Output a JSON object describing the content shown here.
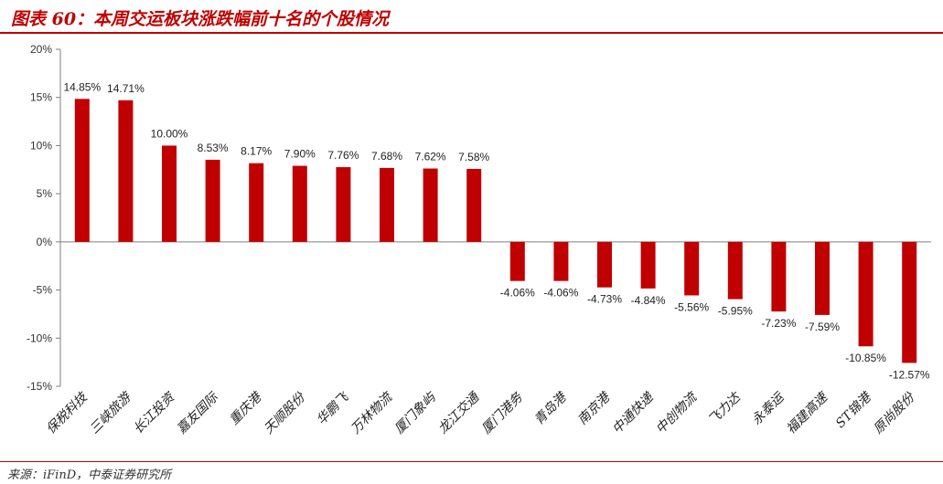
{
  "title": "图表 60：本周交运板块涨跌幅前十名的个股情况",
  "source": "来源：iFinD，中泰证券研究所",
  "colors": {
    "accent": "#c00000",
    "bar": "#c00000"
  },
  "chart_data": {
    "type": "bar",
    "title": "",
    "xlabel": "",
    "ylabel": "",
    "ylim": [
      -15,
      20
    ],
    "yticks": [
      20,
      15,
      10,
      5,
      0,
      -5,
      -10,
      -15
    ],
    "ytick_labels": [
      "20%",
      "15%",
      "10%",
      "5%",
      "0%",
      "-5%",
      "-10%",
      "-15%"
    ],
    "grid": false,
    "categories": [
      "保税科技",
      "三峡旅游",
      "长江投资",
      "嘉友国际",
      "重庆港",
      "天顺股份",
      "华鹏飞",
      "万林物流",
      "厦门象屿",
      "龙江交通",
      "厦门港务",
      "青岛港",
      "南京港",
      "中通快递",
      "中创物流",
      "飞力达",
      "永泰运",
      "福建高速",
      "ST锦港",
      "原尚股份"
    ],
    "values": [
      14.85,
      14.71,
      10.0,
      8.53,
      8.17,
      7.9,
      7.76,
      7.68,
      7.62,
      7.58,
      -4.06,
      -4.06,
      -4.73,
      -4.84,
      -5.56,
      -5.95,
      -7.23,
      -7.59,
      -10.85,
      -12.57
    ],
    "labels": [
      "14.85%",
      "14.71%",
      "10.00%",
      "8.53%",
      "8.17%",
      "7.90%",
      "7.76%",
      "7.68%",
      "7.62%",
      "7.58%",
      "-4.06%",
      "-4.06%",
      "-4.73%",
      "-4.84%",
      "-5.56%",
      "-5.95%",
      "-7.23%",
      "-7.59%",
      "-10.85%",
      "-12.57%"
    ]
  }
}
